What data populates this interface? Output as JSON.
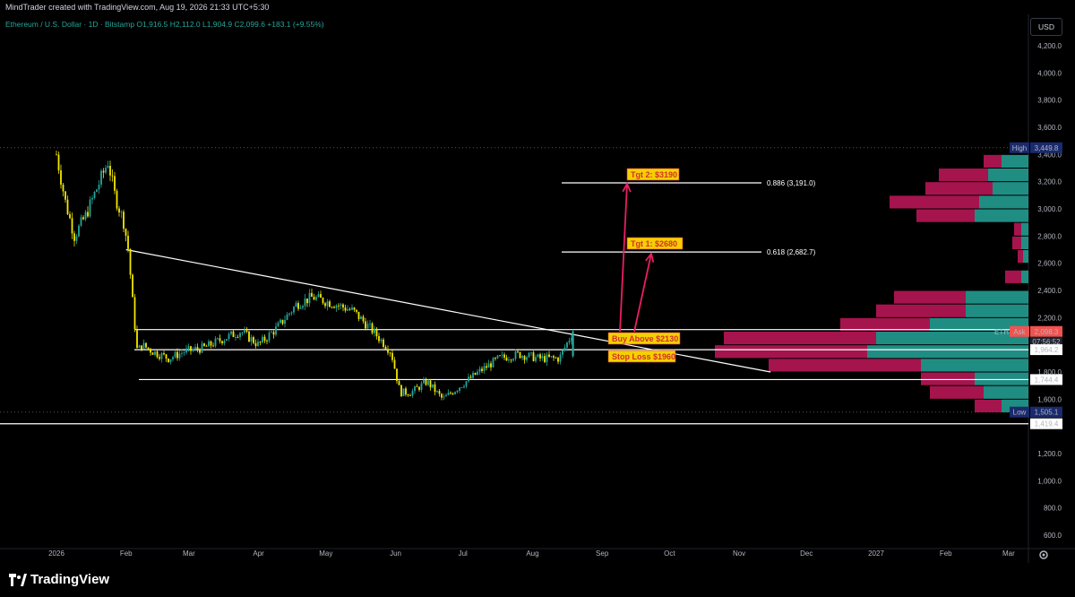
{
  "header": {
    "attribution": "MindTrader created with TradingView.com, Aug 19, 2026 21:33 UTC+5:30",
    "symbol_info": "Ethereum / U.S. Dollar · 1D · Bitstamp  O1,916.5  H2,112.0  L1,904.9  C2,099.6  +183.1 (+9.55%)",
    "currency_button": "USD"
  },
  "y_axis": {
    "ticks": [
      "4,200.0",
      "4,000.0",
      "3,800.0",
      "3,600.0",
      "3,400.0",
      "3,200.0",
      "3,000.0",
      "2,800.0",
      "2,600.0",
      "2,400.0",
      "2,200.0",
      "1,800.0",
      "1,600.0",
      "1,200.0",
      "1,000.0",
      "800.0",
      "600.0"
    ]
  },
  "x_axis": {
    "ticks": [
      "2026",
      "Feb",
      "Mar",
      "Apr",
      "May",
      "Jun",
      "Jul",
      "Aug",
      "Sep",
      "Oct",
      "Nov",
      "Dec",
      "2027",
      "Feb",
      "Mar"
    ]
  },
  "price_tags": {
    "high_label": "High",
    "high_value": "3,449.8",
    "eth_label": "ETH",
    "ask_label": "Ask",
    "ask_value": "2,098.3",
    "countdown": "07:56:52",
    "level_1964": "1,964.2",
    "level_1744": "1,744.4",
    "low_label": "Low",
    "low_value": "1,505.1",
    "level_1419": "1,419.4"
  },
  "annotations": {
    "tgt2": "Tgt 2: $3190",
    "tgt1": "Tgt 1: $2680",
    "buy": "Buy Above $2130",
    "stop": "Stop Loss $1960",
    "fib_886": "0.886 (3,191.0)",
    "fib_618": "0.618 (2,682.7)"
  },
  "colors": {
    "bull": "#26a69a",
    "bear": "#f2e800",
    "target_box": "#f5d000",
    "arrow": "#e91e63",
    "vp_up": "#26a69a",
    "vp_down": "#c2185b"
  },
  "footer": {
    "brand": "TradingView"
  },
  "chart_data": {
    "type": "candlestick",
    "title": "Ethereum / U.S. Dollar · 1D · Bitstamp",
    "ohlc": {
      "open": 1916.5,
      "high": 2112.0,
      "low": 1904.9,
      "close": 2099.6,
      "change": "+183.1 (+9.55%)"
    },
    "price_path": [
      [
        "2026-01-01",
        3400
      ],
      [
        "2026-01-05",
        3050
      ],
      [
        "2026-01-09",
        2800
      ],
      [
        "2026-01-14",
        2950
      ],
      [
        "2026-01-19",
        3150
      ],
      [
        "2026-01-24",
        3350
      ],
      [
        "2026-01-27",
        3100
      ],
      [
        "2026-01-31",
        2900
      ],
      [
        "2026-02-02",
        2700
      ],
      [
        "2026-02-04",
        2300
      ],
      [
        "2026-02-06",
        1950
      ],
      [
        "2026-02-08",
        2000
      ],
      [
        "2026-02-13",
        1950
      ],
      [
        "2026-02-20",
        1900
      ],
      [
        "2026-02-27",
        1950
      ],
      [
        "2026-03-08",
        1980
      ],
      [
        "2026-03-17",
        2050
      ],
      [
        "2026-03-24",
        2100
      ],
      [
        "2026-04-01",
        2000
      ],
      [
        "2026-04-09",
        2120
      ],
      [
        "2026-04-18",
        2300
      ],
      [
        "2026-04-25",
        2350
      ],
      [
        "2026-05-05",
        2300
      ],
      [
        "2026-05-13",
        2250
      ],
      [
        "2026-05-22",
        2100
      ],
      [
        "2026-05-30",
        1950
      ],
      [
        "2026-06-03",
        1650
      ],
      [
        "2026-06-08",
        1650
      ],
      [
        "2026-06-15",
        1730
      ],
      [
        "2026-06-22",
        1600
      ],
      [
        "2026-06-30",
        1700
      ],
      [
        "2026-07-08",
        1800
      ],
      [
        "2026-07-17",
        1900
      ],
      [
        "2026-07-26",
        1930
      ],
      [
        "2026-08-04",
        1900
      ],
      [
        "2026-08-13",
        1900
      ],
      [
        "2026-08-19",
        2099.6
      ]
    ],
    "horizontal_levels": [
      3191.0,
      2682.7,
      2112,
      1964.2,
      1744.4,
      1419.4
    ],
    "high": 3449.8,
    "low": 1505.1,
    "last_price": 2098.3,
    "fibonacci": [
      {
        "ratio": 0.886,
        "price": 3191.0
      },
      {
        "ratio": 0.618,
        "price": 2682.7
      }
    ],
    "trendline": [
      [
        "2026-02-01",
        2700
      ],
      [
        "2026-11-15",
        1800
      ]
    ],
    "volume_profile": [
      {
        "price": 3350,
        "up": 30,
        "down": 20
      },
      {
        "price": 3250,
        "up": 45,
        "down": 55
      },
      {
        "price": 3150,
        "up": 40,
        "down": 75
      },
      {
        "price": 3050,
        "up": 55,
        "down": 100
      },
      {
        "price": 2950,
        "up": 60,
        "down": 65
      },
      {
        "price": 2850,
        "up": 8,
        "down": 8
      },
      {
        "price": 2750,
        "up": 8,
        "down": 10
      },
      {
        "price": 2650,
        "up": 6,
        "down": 6
      },
      {
        "price": 2500,
        "up": 8,
        "down": 18
      },
      {
        "price": 2350,
        "up": 70,
        "down": 80
      },
      {
        "price": 2250,
        "up": 70,
        "down": 100
      },
      {
        "price": 2150,
        "up": 110,
        "down": 100
      },
      {
        "price": 2050,
        "up": 170,
        "down": 170
      },
      {
        "price": 1950,
        "up": 180,
        "down": 170
      },
      {
        "price": 1850,
        "up": 120,
        "down": 170
      },
      {
        "price": 1750,
        "up": 60,
        "down": 60
      },
      {
        "price": 1650,
        "up": 50,
        "down": 60
      },
      {
        "price": 1550,
        "up": 30,
        "down": 30
      }
    ],
    "ylim": [
      550,
      4300
    ],
    "xlim": [
      "2025-12-25",
      "2027-03-20"
    ]
  }
}
